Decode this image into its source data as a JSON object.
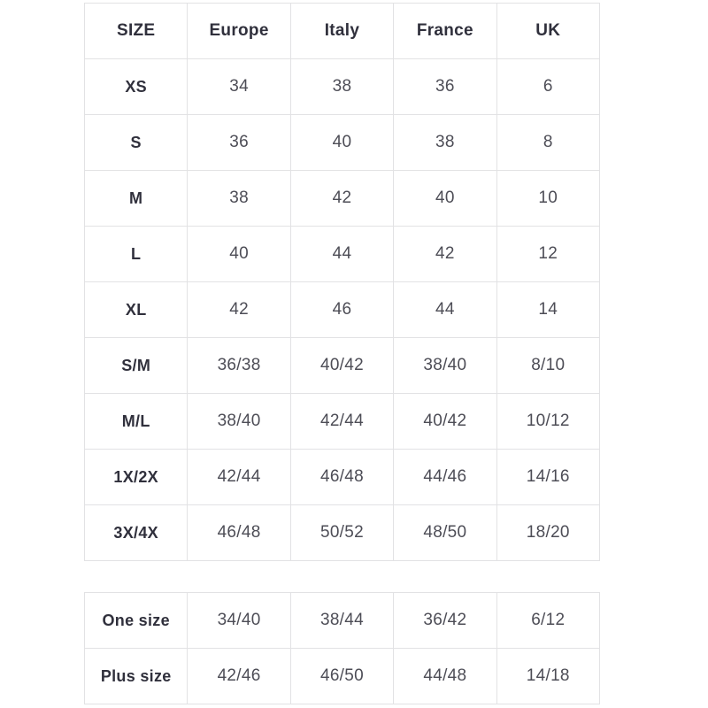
{
  "colors": {
    "background": "#ffffff",
    "table_border": "#e2e2e4",
    "header_text": "#30303c",
    "cell_text": "#4d4d56"
  },
  "size_table": {
    "columns": [
      "SIZE",
      "Europe",
      "Italy",
      "France",
      "UK"
    ],
    "rows": [
      {
        "cells": [
          "XS",
          "34",
          "38",
          "36",
          "6"
        ]
      },
      {
        "cells": [
          "S",
          "36",
          "40",
          "38",
          "8"
        ]
      },
      {
        "cells": [
          "M",
          "38",
          "42",
          "40",
          "10"
        ]
      },
      {
        "cells": [
          "L",
          "40",
          "44",
          "42",
          "12"
        ]
      },
      {
        "cells": [
          "XL",
          "42",
          "46",
          "44",
          "14"
        ]
      },
      {
        "cells": [
          "S/M",
          "36/38",
          "40/42",
          "38/40",
          "8/10"
        ]
      },
      {
        "cells": [
          "M/L",
          "38/40",
          "42/44",
          "40/42",
          "10/12"
        ]
      },
      {
        "cells": [
          "1X/2X",
          "42/44",
          "46/48",
          "44/46",
          "14/16"
        ]
      },
      {
        "cells": [
          "3X/4X",
          "46/48",
          "50/52",
          "48/50",
          "18/20"
        ]
      }
    ]
  },
  "special_size_table": {
    "rows": [
      {
        "cells": [
          "One size",
          "34/40",
          "38/44",
          "36/42",
          "6/12"
        ]
      },
      {
        "cells": [
          "Plus size",
          "42/46",
          "46/50",
          "44/48",
          "14/18"
        ]
      }
    ]
  }
}
